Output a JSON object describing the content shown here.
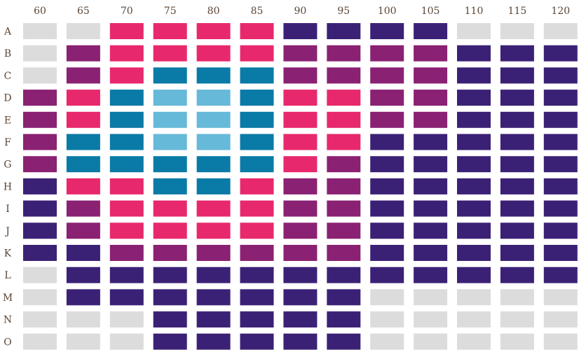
{
  "chart_data": {
    "type": "heatmap",
    "title": "",
    "xlabel": "",
    "ylabel": "",
    "legend": "none",
    "x_categories": [
      "60",
      "65",
      "70",
      "75",
      "80",
      "85",
      "90",
      "95",
      "100",
      "105",
      "110",
      "115",
      "120"
    ],
    "y_categories": [
      "A",
      "B",
      "C",
      "D",
      "E",
      "F",
      "G",
      "H",
      "I",
      "J",
      "K",
      "L",
      "M",
      "N",
      "O"
    ],
    "levels": [
      {
        "level": 0,
        "color": "#dcdcdc"
      },
      {
        "level": 1,
        "color": "#3b2176"
      },
      {
        "level": 2,
        "color": "#8a2173"
      },
      {
        "level": 3,
        "color": "#e8286d"
      },
      {
        "level": 4,
        "color": "#0a7aa6"
      },
      {
        "level": 5,
        "color": "#66b9d8"
      }
    ],
    "values": [
      [
        0,
        0,
        3,
        3,
        3,
        3,
        1,
        1,
        1,
        1,
        0,
        0,
        0
      ],
      [
        0,
        2,
        3,
        3,
        3,
        3,
        2,
        2,
        2,
        2,
        1,
        1,
        1
      ],
      [
        0,
        2,
        3,
        4,
        4,
        4,
        2,
        2,
        2,
        2,
        1,
        1,
        1
      ],
      [
        2,
        3,
        4,
        5,
        5,
        4,
        3,
        3,
        2,
        2,
        1,
        1,
        1
      ],
      [
        2,
        3,
        4,
        5,
        5,
        4,
        3,
        3,
        2,
        2,
        1,
        1,
        1
      ],
      [
        2,
        4,
        4,
        5,
        5,
        4,
        3,
        3,
        1,
        1,
        1,
        1,
        1
      ],
      [
        2,
        4,
        4,
        4,
        4,
        4,
        3,
        2,
        1,
        1,
        1,
        1,
        1
      ],
      [
        1,
        3,
        3,
        4,
        4,
        3,
        2,
        2,
        1,
        1,
        1,
        1,
        1
      ],
      [
        1,
        2,
        3,
        3,
        3,
        3,
        2,
        2,
        1,
        1,
        1,
        1,
        1
      ],
      [
        1,
        2,
        3,
        3,
        3,
        3,
        2,
        2,
        1,
        1,
        1,
        1,
        1
      ],
      [
        1,
        1,
        2,
        2,
        2,
        2,
        2,
        2,
        1,
        1,
        1,
        1,
        1
      ],
      [
        0,
        1,
        1,
        1,
        1,
        1,
        1,
        1,
        1,
        1,
        1,
        1,
        1
      ],
      [
        0,
        1,
        1,
        1,
        1,
        1,
        1,
        1,
        0,
        0,
        0,
        0,
        0
      ],
      [
        0,
        0,
        0,
        1,
        1,
        1,
        1,
        1,
        0,
        0,
        0,
        0,
        0
      ],
      [
        0,
        0,
        0,
        1,
        1,
        1,
        1,
        1,
        0,
        0,
        0,
        0,
        0
      ]
    ]
  }
}
